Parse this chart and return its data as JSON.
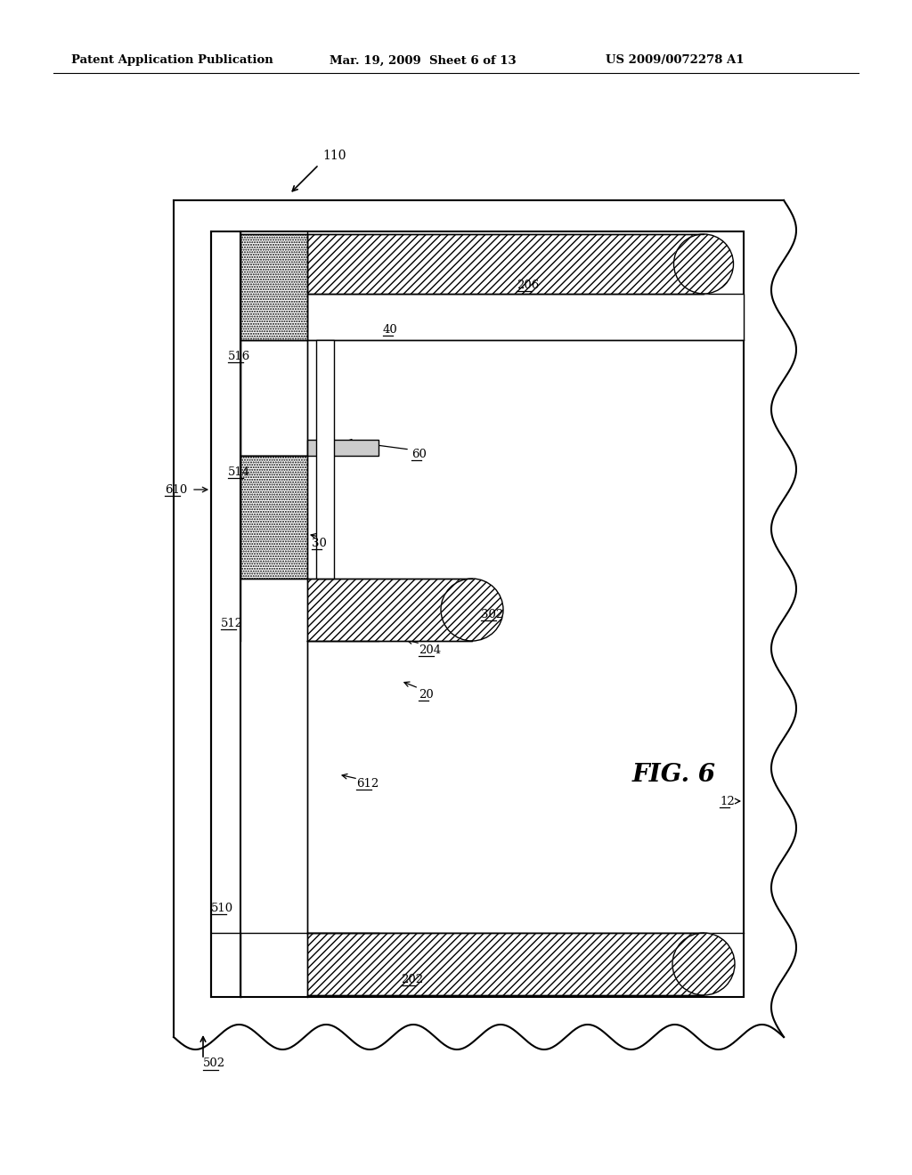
{
  "header_left": "Patent Application Publication",
  "header_center": "Mar. 19, 2009  Sheet 6 of 13",
  "header_right": "US 2009/0072278 A1",
  "fig_label": "FIG. 6",
  "bg_color": "#ffffff",
  "line_color": "#000000"
}
